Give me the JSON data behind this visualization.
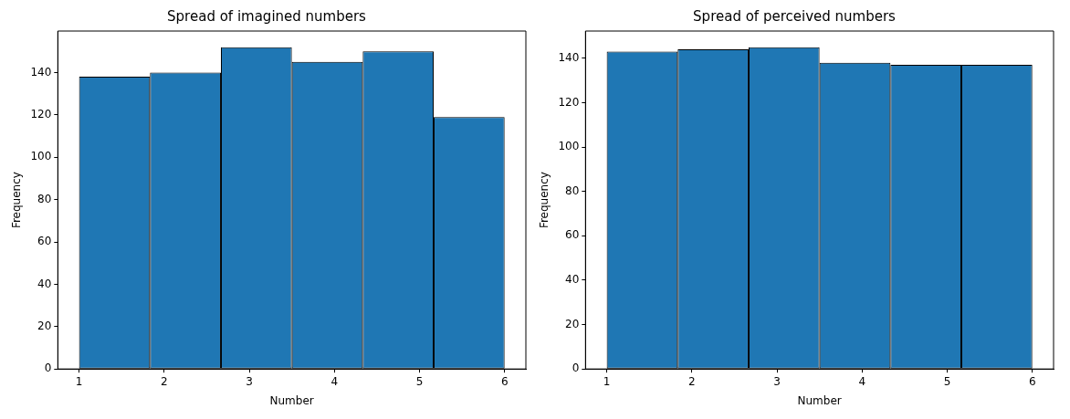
{
  "chart_data": [
    {
      "type": "histogram",
      "title": "Spread of imagined numbers",
      "xlabel": "Number",
      "ylabel": "Frequency",
      "bins": [
        1,
        1.8333,
        2.6667,
        3.5,
        4.3333,
        5.1667,
        6
      ],
      "values": [
        138,
        140,
        152,
        145,
        150,
        119
      ],
      "color": "#1f77b4",
      "xlim": [
        0.75,
        6.25
      ],
      "xticks": [
        1,
        2,
        3,
        4,
        5,
        6
      ],
      "ylim": [
        0,
        159.6
      ],
      "yticks": [
        0,
        20,
        40,
        60,
        80,
        100,
        120,
        140
      ],
      "grid": false,
      "legend": false
    },
    {
      "type": "histogram",
      "title": "Spread of perceived numbers",
      "xlabel": "Number",
      "ylabel": "Frequency",
      "bins": [
        1,
        1.8333,
        2.6667,
        3.5,
        4.3333,
        5.1667,
        6
      ],
      "values": [
        143,
        144,
        145,
        138,
        137,
        137
      ],
      "color": "#1f77b4",
      "xlim": [
        0.75,
        6.25
      ],
      "xticks": [
        1,
        2,
        3,
        4,
        5,
        6
      ],
      "ylim": [
        0,
        152.25
      ],
      "yticks": [
        0,
        20,
        40,
        60,
        80,
        100,
        120,
        140
      ],
      "grid": false,
      "legend": false
    }
  ]
}
